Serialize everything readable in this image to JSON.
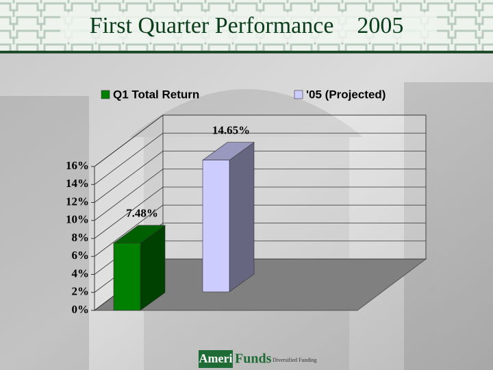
{
  "chart_data": {
    "type": "bar3d",
    "title": "First Quarter Performance    2005",
    "categories": [
      null
    ],
    "series": [
      {
        "name": "Q1 Total Return",
        "color": "#008000",
        "values": [
          7.48
        ],
        "value_labels": [
          "7.48%"
        ]
      },
      {
        "name": "'05 (Projected)",
        "color": "#ccccff",
        "values": [
          14.65
        ],
        "value_labels": [
          "14.65%"
        ]
      }
    ],
    "ylim": [
      0,
      16
    ],
    "yticks": [
      {
        "value": 0,
        "label": "0%"
      },
      {
        "value": 2,
        "label": "2%"
      },
      {
        "value": 4,
        "label": "4%"
      },
      {
        "value": 6,
        "label": "6%"
      },
      {
        "value": 8,
        "label": "8%"
      },
      {
        "value": 10,
        "label": "10%"
      },
      {
        "value": 12,
        "label": "12%"
      },
      {
        "value": 14,
        "label": "14%"
      },
      {
        "value": 16,
        "label": "16%"
      }
    ],
    "grid": true,
    "legend": "top"
  },
  "footer": {
    "brand_1": "Ameri",
    "brand_2": "Funds",
    "tagline": "Diversified Funding"
  }
}
